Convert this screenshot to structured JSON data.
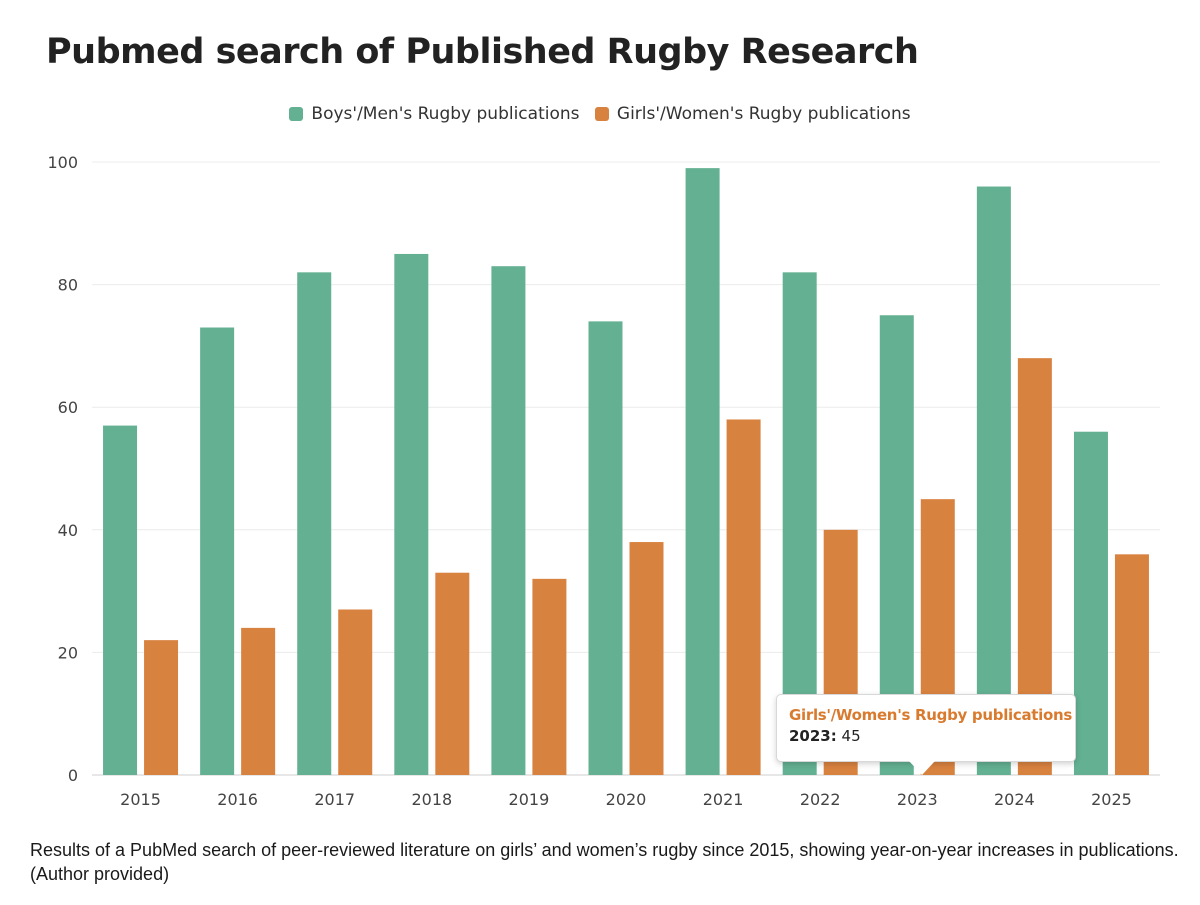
{
  "chart_data": {
    "type": "bar",
    "title": "Pubmed search of Published Rugby Research",
    "categories": [
      "2015",
      "2016",
      "2017",
      "2018",
      "2019",
      "2020",
      "2021",
      "2022",
      "2023",
      "2024",
      "2025"
    ],
    "series": [
      {
        "name": "Boys'/Men's Rugby publications",
        "color": "#63b092",
        "values": [
          57,
          73,
          82,
          85,
          83,
          74,
          99,
          82,
          75,
          96,
          56
        ]
      },
      {
        "name": "Girls'/Women's Rugby publications",
        "color": "#d88240",
        "values": [
          22,
          24,
          27,
          33,
          32,
          38,
          58,
          40,
          45,
          68,
          36
        ]
      }
    ],
    "yticks": [
      "0",
      "20",
      "40",
      "60",
      "80",
      "100"
    ],
    "ylim": [
      0,
      100
    ],
    "grid": true,
    "legend_position": "top-center",
    "tooltip": {
      "series": "Girls'/Women's Rugby publications",
      "category": "2023",
      "category_label": "2023:",
      "value": "45",
      "color": "#d97b2f"
    }
  },
  "caption": "Results of a PubMed search of peer-reviewed literature on girls’ and women’s rugby since 2015, showing year-on-year increases in publications. (Author provided)"
}
